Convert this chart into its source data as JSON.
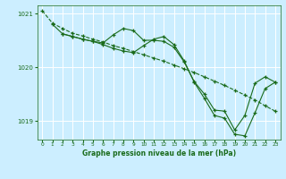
{
  "background_color": "#cceeff",
  "grid_color": "#ffffff",
  "line_color": "#1a6b1a",
  "marker_color": "#1a6b1a",
  "title": "Graphe pression niveau de la mer (hPa)",
  "xlim": [
    -0.5,
    23.5
  ],
  "ylim": [
    1018.65,
    1021.15
  ],
  "yticks": [
    1019,
    1020,
    1021
  ],
  "xticks": [
    0,
    1,
    2,
    3,
    4,
    5,
    6,
    7,
    8,
    9,
    10,
    11,
    12,
    13,
    14,
    15,
    16,
    17,
    18,
    19,
    20,
    21,
    22,
    23
  ],
  "series": [
    {
      "x": [
        0,
        1,
        2,
        3,
        4,
        5,
        6,
        7,
        8,
        9,
        10,
        11,
        12,
        13,
        14,
        15,
        16,
        17,
        18,
        19,
        20,
        21,
        22,
        23
      ],
      "y": [
        1021.05,
        1020.82,
        1020.72,
        1020.63,
        1020.58,
        1020.52,
        1020.47,
        1020.4,
        1020.35,
        1020.29,
        1020.23,
        1020.17,
        1020.11,
        1020.04,
        1019.97,
        1019.9,
        1019.82,
        1019.74,
        1019.66,
        1019.57,
        1019.48,
        1019.39,
        1019.28,
        1019.18
      ],
      "style": "dashed"
    },
    {
      "x": [
        1,
        2,
        3,
        4,
        5,
        6,
        7,
        8,
        9,
        10,
        11,
        12,
        13,
        14,
        15,
        16,
        17,
        18,
        19,
        20,
        21,
        22,
        23
      ],
      "y": [
        1020.8,
        1020.62,
        1020.57,
        1020.52,
        1020.48,
        1020.45,
        1020.6,
        1020.72,
        1020.68,
        1020.5,
        1020.5,
        1020.48,
        1020.37,
        1020.1,
        1019.73,
        1019.5,
        1019.2,
        1019.18,
        1018.83,
        1019.1,
        1019.7,
        1019.82,
        1019.72
      ],
      "style": "solid"
    },
    {
      "x": [
        2,
        3,
        4,
        5,
        6,
        7,
        8,
        9,
        10,
        11,
        12,
        13,
        14,
        15,
        16,
        17,
        18,
        19,
        20,
        21,
        22,
        23
      ],
      "y": [
        1020.62,
        1020.57,
        1020.52,
        1020.48,
        1020.42,
        1020.35,
        1020.3,
        1020.27,
        1020.4,
        1020.52,
        1020.57,
        1020.42,
        1020.12,
        1019.72,
        1019.42,
        1019.1,
        1019.05,
        1018.75,
        1018.72,
        1019.15,
        1019.6,
        1019.72
      ],
      "style": "solid"
    }
  ]
}
